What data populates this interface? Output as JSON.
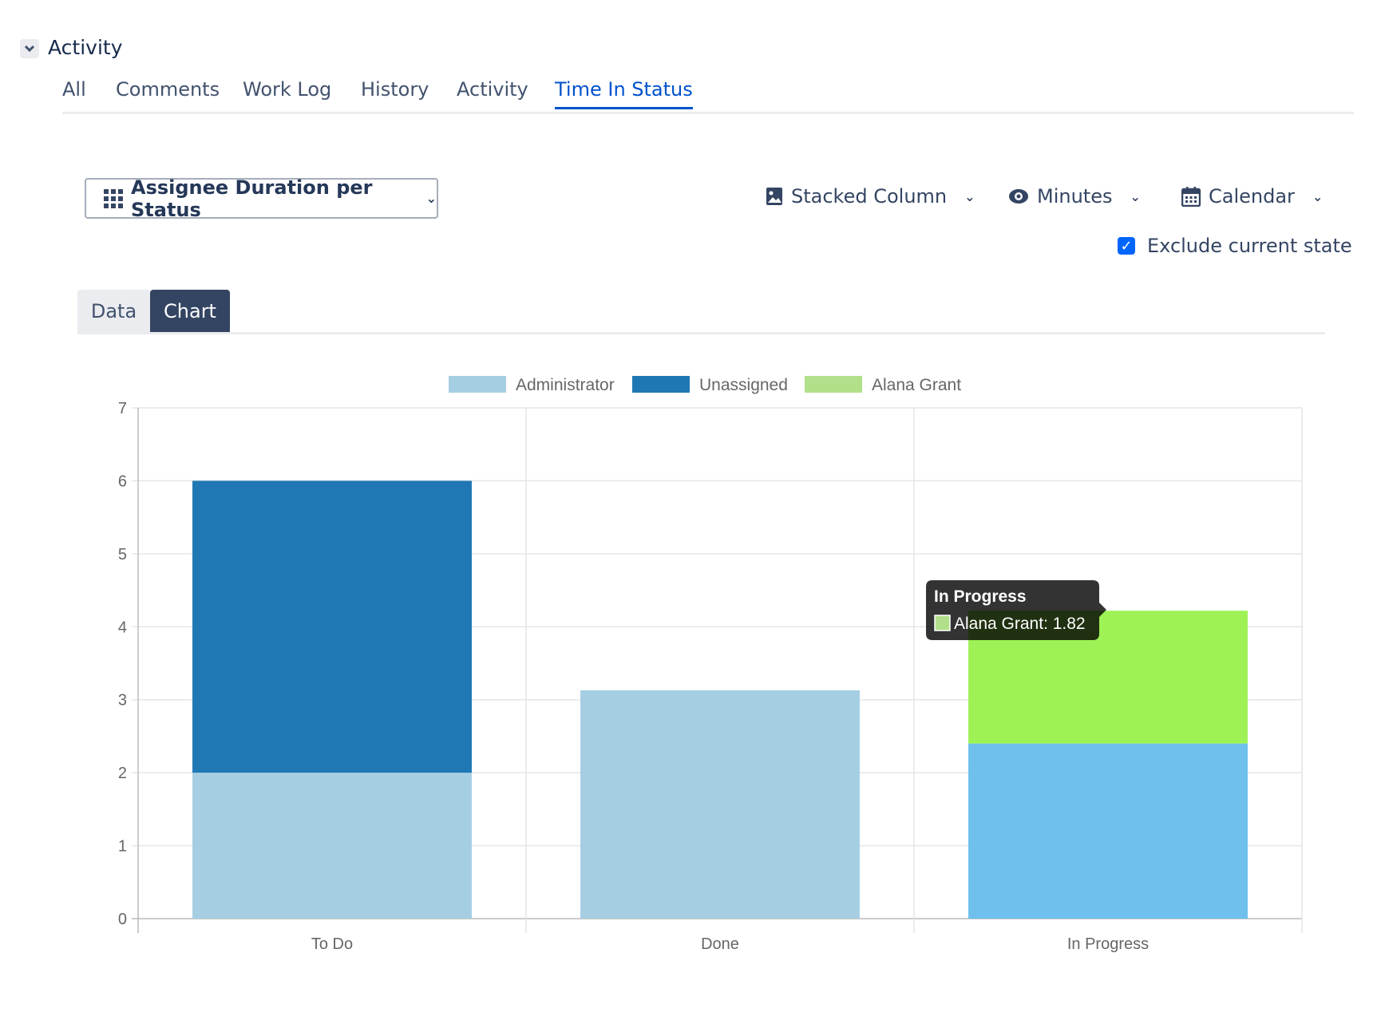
{
  "section": {
    "title": "Activity",
    "collapse_icon": "chevron-down-icon"
  },
  "tabs": [
    {
      "label": "All",
      "active": false
    },
    {
      "label": "Comments",
      "active": false
    },
    {
      "label": "Work Log",
      "active": false
    },
    {
      "label": "History",
      "active": false
    },
    {
      "label": "Activity",
      "active": false
    },
    {
      "label": "Time In Status",
      "active": true
    }
  ],
  "toolbar": {
    "report_type": "Assignee Duration per Status",
    "chart_type": "Stacked Column",
    "time_unit": "Minutes",
    "calendar": "Calendar",
    "exclude_current_state": {
      "label": "Exclude current state",
      "checked": true
    }
  },
  "view_tabs": [
    {
      "label": "Data",
      "active": false
    },
    {
      "label": "Chart",
      "active": true
    }
  ],
  "colors": {
    "accent": "#0052cc",
    "active_view_tab": "#344563",
    "checkbox": "#0065ff"
  },
  "chart_data": {
    "type": "bar",
    "stacked": true,
    "categories": [
      "To Do",
      "Done",
      "In Progress"
    ],
    "series": [
      {
        "name": "Administrator",
        "color": "#a6cee3",
        "hover_color": "#6fc0ec",
        "values": [
          2,
          3.13,
          2.4
        ]
      },
      {
        "name": "Unassigned",
        "color": "#1f78b4",
        "hover_color": "#1f78b4",
        "values": [
          4,
          0,
          0
        ]
      },
      {
        "name": "Alana Grant",
        "color": "#b2df8a",
        "hover_color": "#9ef255",
        "values": [
          0,
          0,
          1.82
        ]
      }
    ],
    "ylim": [
      0,
      7
    ],
    "yticks": [
      0,
      1,
      2,
      3,
      4,
      5,
      6,
      7
    ],
    "grid": true,
    "legend": "top",
    "hovered_category": "In Progress",
    "tooltip": {
      "title": "In Progress",
      "series": "Alana Grant",
      "value": "1.82",
      "text": "Alana Grant: 1.82"
    }
  }
}
